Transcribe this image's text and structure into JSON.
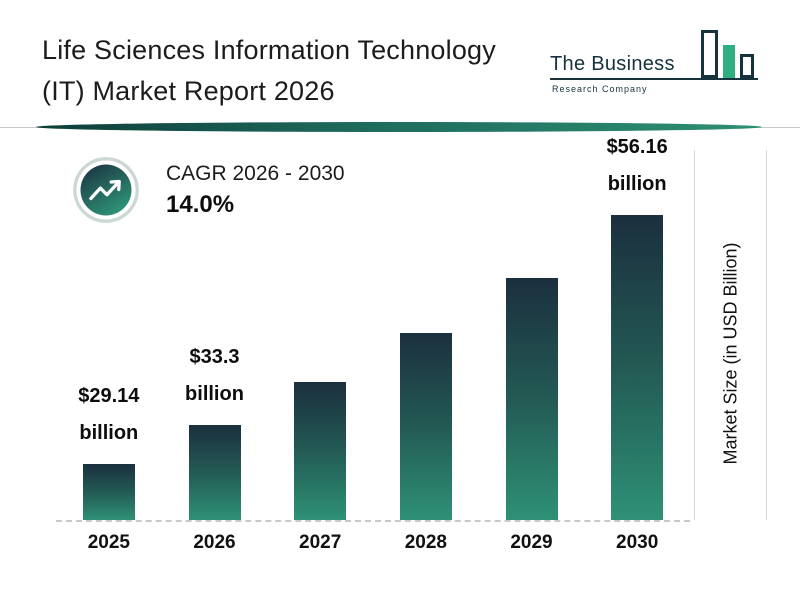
{
  "title": {
    "line1": "Life Sciences Information Technology",
    "line2": "(IT) Market Report 2026"
  },
  "logo": {
    "name_top": "The Business",
    "name_bottom": "Research Company"
  },
  "cagr": {
    "label": "CAGR 2026 - 2030",
    "value": "14.0%"
  },
  "colors": {
    "bar_gradient_top": "#1b2f3e",
    "bar_gradient_bottom": "#2e9176",
    "accent_teal": "#1e6b5c",
    "logo_green": "#2fae80",
    "logo_dark": "#15323d",
    "text_dark": "#1c1c1c"
  },
  "chart_data": {
    "type": "bar",
    "title": "Life Sciences Information Technology (IT) Market Report 2026",
    "categories": [
      "2025",
      "2026",
      "2027",
      "2028",
      "2029",
      "2030"
    ],
    "values": [
      29.14,
      33.3,
      37.96,
      43.28,
      49.34,
      56.16
    ],
    "value_labels": [
      "$29.14 billion",
      "$33.3 billion",
      "",
      "",
      "",
      "$56.16 billion"
    ],
    "xlabel": "",
    "ylabel": "Market Size (in USD Billion)",
    "ylim": [
      23,
      58
    ],
    "grid": "off",
    "legend": "none",
    "cagr_label": "CAGR 2026 - 2030",
    "cagr_value": "14.0%"
  }
}
